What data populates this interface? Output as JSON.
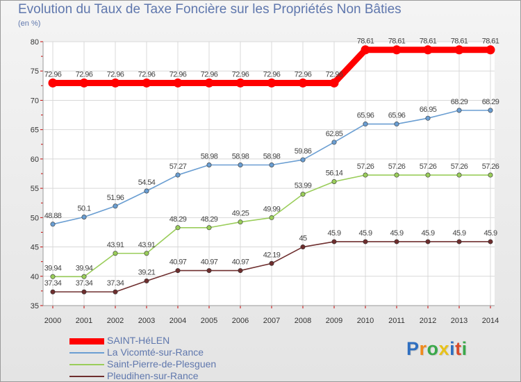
{
  "chart_data": {
    "type": "line",
    "title": "Evolution du Taux de Taxe Foncière sur les Propriétés Non Bâties",
    "ylabel": "(en %)",
    "ylim": [
      35,
      80
    ],
    "yticks": [
      35,
      40,
      45,
      50,
      55,
      60,
      65,
      70,
      75,
      80
    ],
    "ytick_labels": [
      "35",
      "40",
      "45",
      "50",
      "55",
      "60",
      "65",
      "70",
      "75",
      "80"
    ],
    "x": [
      "2000",
      "2001",
      "2002",
      "2003",
      "2004",
      "2005",
      "2006",
      "2007",
      "2008",
      "2009",
      "2010",
      "2011",
      "2012",
      "2013",
      "2014"
    ],
    "grid": true,
    "legend_position": "bottom-left",
    "series": [
      {
        "name": "SAINT-HéLEN",
        "color": "#ff0000",
        "values": [
          72.96,
          72.96,
          72.96,
          72.96,
          72.96,
          72.96,
          72.96,
          72.96,
          72.96,
          72.96,
          78.61,
          78.61,
          78.61,
          78.61,
          78.61
        ],
        "labels": [
          "72.96",
          "72.96",
          "72.96",
          "72.96",
          "72.96",
          "72.96",
          "72.96",
          "72.96",
          "72.96",
          "72.96",
          "78.61",
          "78.61",
          "78.61",
          "78.61",
          "78.61"
        ]
      },
      {
        "name": "La Vicomté-sur-Rance",
        "color": "#6a9ed2",
        "values": [
          48.88,
          50.1,
          51.96,
          54.54,
          57.27,
          58.98,
          58.98,
          58.98,
          59.86,
          62.85,
          65.96,
          65.96,
          66.95,
          68.29,
          68.29
        ],
        "labels": [
          "48.88",
          "50.1",
          "51.96",
          "54.54",
          "57.27",
          "58.98",
          "58.98",
          "58.98",
          "59.86",
          "62.85",
          "65.96",
          "65.96",
          "66.95",
          "68.29",
          "68.29"
        ]
      },
      {
        "name": "Saint-Pierre-de-Plesguen",
        "color": "#9acd5a",
        "values": [
          39.94,
          39.94,
          43.91,
          43.91,
          48.29,
          48.29,
          49.25,
          49.99,
          53.99,
          56.14,
          57.26,
          57.26,
          57.26,
          57.26,
          57.26
        ],
        "labels": [
          "39.94",
          "39.94",
          "43.91",
          "43.91",
          "48.29",
          "48.29",
          "49.25",
          "49.99",
          "53.99",
          "56.14",
          "57.26",
          "57.26",
          "57.26",
          "57.26",
          "57.26"
        ]
      },
      {
        "name": "Pleudihen-sur-Rance",
        "color": "#6e2e2e",
        "values": [
          37.34,
          37.34,
          37.34,
          39.21,
          40.97,
          40.97,
          40.97,
          42.19,
          45,
          45.9,
          45.9,
          45.9,
          45.9,
          45.9,
          45.9
        ],
        "labels": [
          "37.34",
          "37.34",
          "37.34",
          "39.21",
          "40.97",
          "40.97",
          "40.97",
          "42.19",
          "45",
          "45.9",
          "45.9",
          "45.9",
          "45.9",
          "45.9",
          "45.9"
        ]
      }
    ]
  },
  "logo": {
    "letters": [
      "P",
      "r",
      "o",
      "x",
      "i",
      "t",
      "i"
    ],
    "colors": [
      "#2f6fc0",
      "#f08a1c",
      "#3aa84a",
      "#e8c21a",
      "#2f6fc0",
      "#d84a2a",
      "#3aa84a"
    ]
  }
}
